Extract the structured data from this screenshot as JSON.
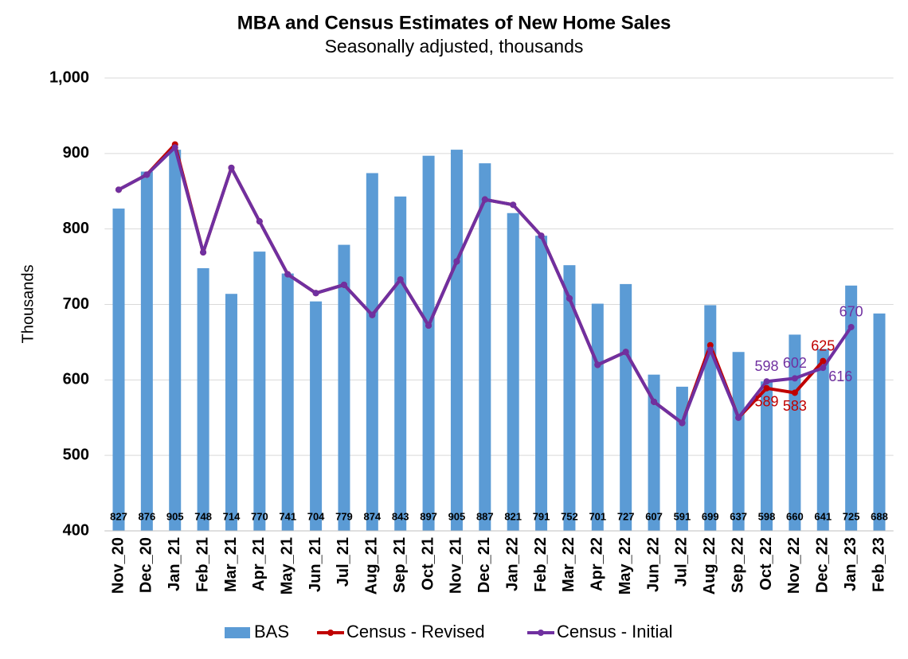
{
  "chart_data": {
    "type": "bar-line",
    "title": "MBA and Census Estimates of New Home Sales",
    "subtitle": "Seasonally adjusted, thousands",
    "y_label": "Thousands",
    "categories": [
      "Nov_20",
      "Dec_20",
      "Jan_21",
      "Feb_21",
      "Mar_21",
      "Apr_21",
      "May_21",
      "Jun_21",
      "Jul_21",
      "Aug_21",
      "Sep_21",
      "Oct_21",
      "Nov_21",
      "Dec_21",
      "Jan_22",
      "Feb_22",
      "Mar_22",
      "Apr_22",
      "May_22",
      "Jun_22",
      "Jul_22",
      "Aug_22",
      "Sep_22",
      "Oct_22",
      "Nov_22",
      "Dec_22",
      "Jan_23",
      "Feb_23"
    ],
    "series": [
      {
        "name": "BAS",
        "type": "bar",
        "color": "#5b9bd5",
        "values": [
          827,
          876,
          905,
          748,
          714,
          770,
          741,
          704,
          779,
          874,
          843,
          897,
          905,
          887,
          821,
          791,
          752,
          701,
          727,
          607,
          591,
          699,
          637,
          598,
          660,
          641,
          725,
          688
        ]
      },
      {
        "name": "Census - Revised",
        "type": "line",
        "color": "#c00000",
        "values": [
          852,
          872,
          912,
          769,
          881,
          810,
          740,
          715,
          726,
          686,
          733,
          672,
          757,
          839,
          832,
          791,
          708,
          620,
          637,
          571,
          543,
          646,
          550,
          589,
          583,
          625,
          null,
          null
        ],
        "value_labels": [
          null,
          null,
          null,
          null,
          null,
          null,
          null,
          null,
          null,
          null,
          null,
          null,
          null,
          null,
          null,
          null,
          null,
          null,
          null,
          null,
          null,
          null,
          null,
          "589",
          "583",
          "625",
          null,
          null
        ]
      },
      {
        "name": "Census - Initial",
        "type": "line",
        "color": "#7030a0",
        "values": [
          852,
          872,
          908,
          769,
          881,
          810,
          740,
          715,
          726,
          686,
          733,
          672,
          757,
          839,
          832,
          791,
          708,
          620,
          637,
          571,
          543,
          640,
          550,
          598,
          602,
          616,
          670,
          null
        ],
        "value_labels": [
          null,
          null,
          null,
          null,
          null,
          null,
          null,
          null,
          null,
          null,
          null,
          null,
          null,
          null,
          null,
          null,
          null,
          null,
          null,
          null,
          null,
          null,
          null,
          "598",
          "602",
          "616",
          "670",
          null
        ]
      }
    ],
    "ylim": [
      400,
      1000
    ],
    "yticks": [
      400,
      500,
      600,
      700,
      800,
      900,
      {
        "value": 1000,
        "label": "1,000"
      }
    ],
    "grid": true,
    "legend": "bottom"
  }
}
